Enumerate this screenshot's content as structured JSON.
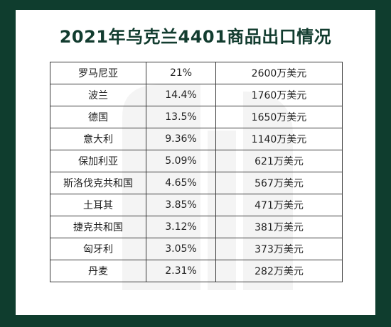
{
  "title": "2021年乌克兰4401商品出口情况",
  "colors": {
    "background": "#0f3d2e",
    "title": "#123c2f",
    "card": "#ffffff"
  },
  "chart_data": {
    "type": "table",
    "title": "2021年乌克兰4401商品出口情况",
    "rows": [
      {
        "country": "罗马尼亚",
        "share": "21%",
        "value": "2600万美元"
      },
      {
        "country": "波兰",
        "share": "14.4%",
        "value": "1760万美元"
      },
      {
        "country": "德国",
        "share": "13.5%",
        "value": "1650万美元"
      },
      {
        "country": "意大利",
        "share": "9.36%",
        "value": "1140万美元"
      },
      {
        "country": "保加利亚",
        "share": "5.09%",
        "value": "621万美元"
      },
      {
        "country": "斯洛伐克共和国",
        "share": "4.65%",
        "value": "567万美元"
      },
      {
        "country": "土耳其",
        "share": "3.85%",
        "value": "471万美元"
      },
      {
        "country": "捷克共和国",
        "share": "3.12%",
        "value": "381万美元"
      },
      {
        "country": "匈牙利",
        "share": "3.05%",
        "value": "373万美元"
      },
      {
        "country": "丹麦",
        "share": "2.31%",
        "value": "282万美元"
      }
    ]
  }
}
